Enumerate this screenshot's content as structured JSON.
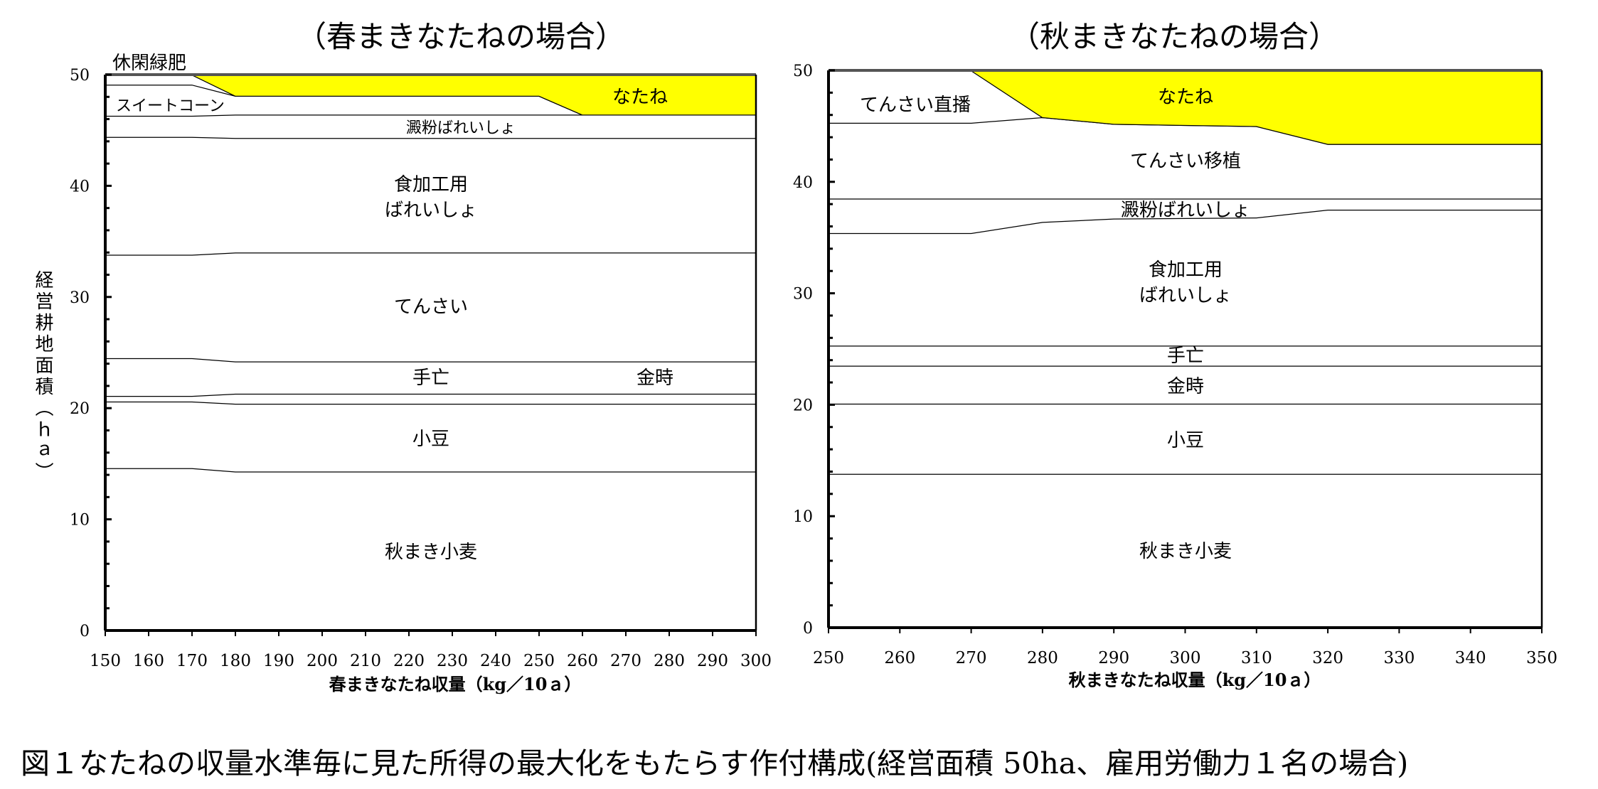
{
  "caption": "図１なたねの収量水準毎に見た所得の最大化をもたらす作付構成(経営面積 50ha、雇用労働力１名の場合)",
  "chart_data": [
    {
      "type": "area",
      "title": "（春まきなたねの場合）",
      "xlabel": "春まきなたね収量（kg／10ａ）",
      "ylabel": "経営耕地面積（ｈａ）",
      "xlim": [
        150,
        300
      ],
      "ylim": [
        0,
        50
      ],
      "xticks": [
        "150",
        "160",
        "170",
        "180",
        "190",
        "200",
        "210",
        "220",
        "230",
        "240",
        "250",
        "260",
        "270",
        "280",
        "290",
        "300"
      ],
      "yticks": [
        "0",
        "10",
        "20",
        "30",
        "40",
        "50"
      ],
      "x": [
        150,
        170,
        180,
        250,
        260,
        300
      ],
      "highlight_color": "#ffff00",
      "series": [
        {
          "name": "秋まき小麦",
          "values": [
            14.6,
            14.6,
            14.3,
            14.3,
            14.3,
            14.3
          ]
        },
        {
          "name": "小豆",
          "values": [
            6.0,
            6.0,
            6.1,
            6.1,
            6.1,
            6.1
          ]
        },
        {
          "name": "金時",
          "values": [
            0.5,
            0.5,
            0.9,
            0.9,
            0.9,
            0.9
          ]
        },
        {
          "name": "手亡",
          "values": [
            3.4,
            3.4,
            2.9,
            2.9,
            2.9,
            2.9
          ]
        },
        {
          "name": "てんさい",
          "values": [
            9.3,
            9.3,
            9.8,
            9.8,
            9.8,
            9.8
          ]
        },
        {
          "name": "食加工用ばれいしょ",
          "line1": "食加工用",
          "line2": "ばれいしょ",
          "values": [
            10.6,
            10.6,
            10.3,
            10.3,
            10.3,
            10.3
          ]
        },
        {
          "name": "澱粉ばれいしょ",
          "values": [
            1.9,
            1.9,
            2.1,
            2.1,
            2.1,
            2.1
          ]
        },
        {
          "name": "スイートコーン",
          "values": [
            2.8,
            2.8,
            1.7,
            1.7,
            0,
            0
          ]
        },
        {
          "name": "休閑緑肥",
          "values": [
            0.9,
            0.9,
            0,
            0,
            0,
            0
          ]
        },
        {
          "name": "なたね",
          "values": [
            0,
            0,
            1.9,
            1.9,
            3.6,
            3.6
          ],
          "highlight": true
        }
      ]
    },
    {
      "type": "area",
      "title": "（秋まきなたねの場合）",
      "xlabel": "秋まきなたね収量（kg／10ａ）",
      "xlim": [
        250,
        350
      ],
      "ylim": [
        0,
        50
      ],
      "xticks": [
        "250",
        "260",
        "270",
        "280",
        "290",
        "300",
        "310",
        "320",
        "330",
        "340",
        "350"
      ],
      "yticks": [
        "0",
        "10",
        "20",
        "30",
        "40",
        "50"
      ],
      "x": [
        250,
        270,
        280,
        290,
        310,
        320,
        350
      ],
      "highlight_color": "#ffff00",
      "series": [
        {
          "name": "秋まき小麦",
          "values": [
            13.8,
            13.8,
            13.8,
            13.8,
            13.8,
            13.8,
            13.8
          ]
        },
        {
          "name": "小豆",
          "values": [
            6.3,
            6.3,
            6.3,
            6.3,
            6.3,
            6.3,
            6.3
          ]
        },
        {
          "name": "金時",
          "values": [
            3.4,
            3.4,
            3.4,
            3.4,
            3.4,
            3.4,
            3.4
          ]
        },
        {
          "name": "手亡",
          "values": [
            1.8,
            1.8,
            1.8,
            1.8,
            1.8,
            1.8,
            1.8
          ]
        },
        {
          "name": "食加工用ばれいしょ",
          "line1": "食加工用",
          "line2": "ばれいしょ",
          "values": [
            10.1,
            10.1,
            11.1,
            11.4,
            11.5,
            12.2,
            12.2
          ]
        },
        {
          "name": "澱粉ばれいしょ",
          "values": [
            3.1,
            3.1,
            2.1,
            1.8,
            1.7,
            1.0,
            1.0
          ]
        },
        {
          "name": "てんさい移植",
          "values": [
            6.8,
            6.8,
            7.3,
            6.7,
            6.5,
            4.9,
            4.9
          ]
        },
        {
          "name": "てんさい直播",
          "values": [
            4.7,
            4.7,
            0,
            0,
            0,
            0,
            0
          ]
        },
        {
          "name": "なたね",
          "values": [
            0,
            0,
            4.2,
            4.8,
            5.0,
            6.6,
            6.6
          ],
          "highlight": true
        }
      ]
    }
  ]
}
